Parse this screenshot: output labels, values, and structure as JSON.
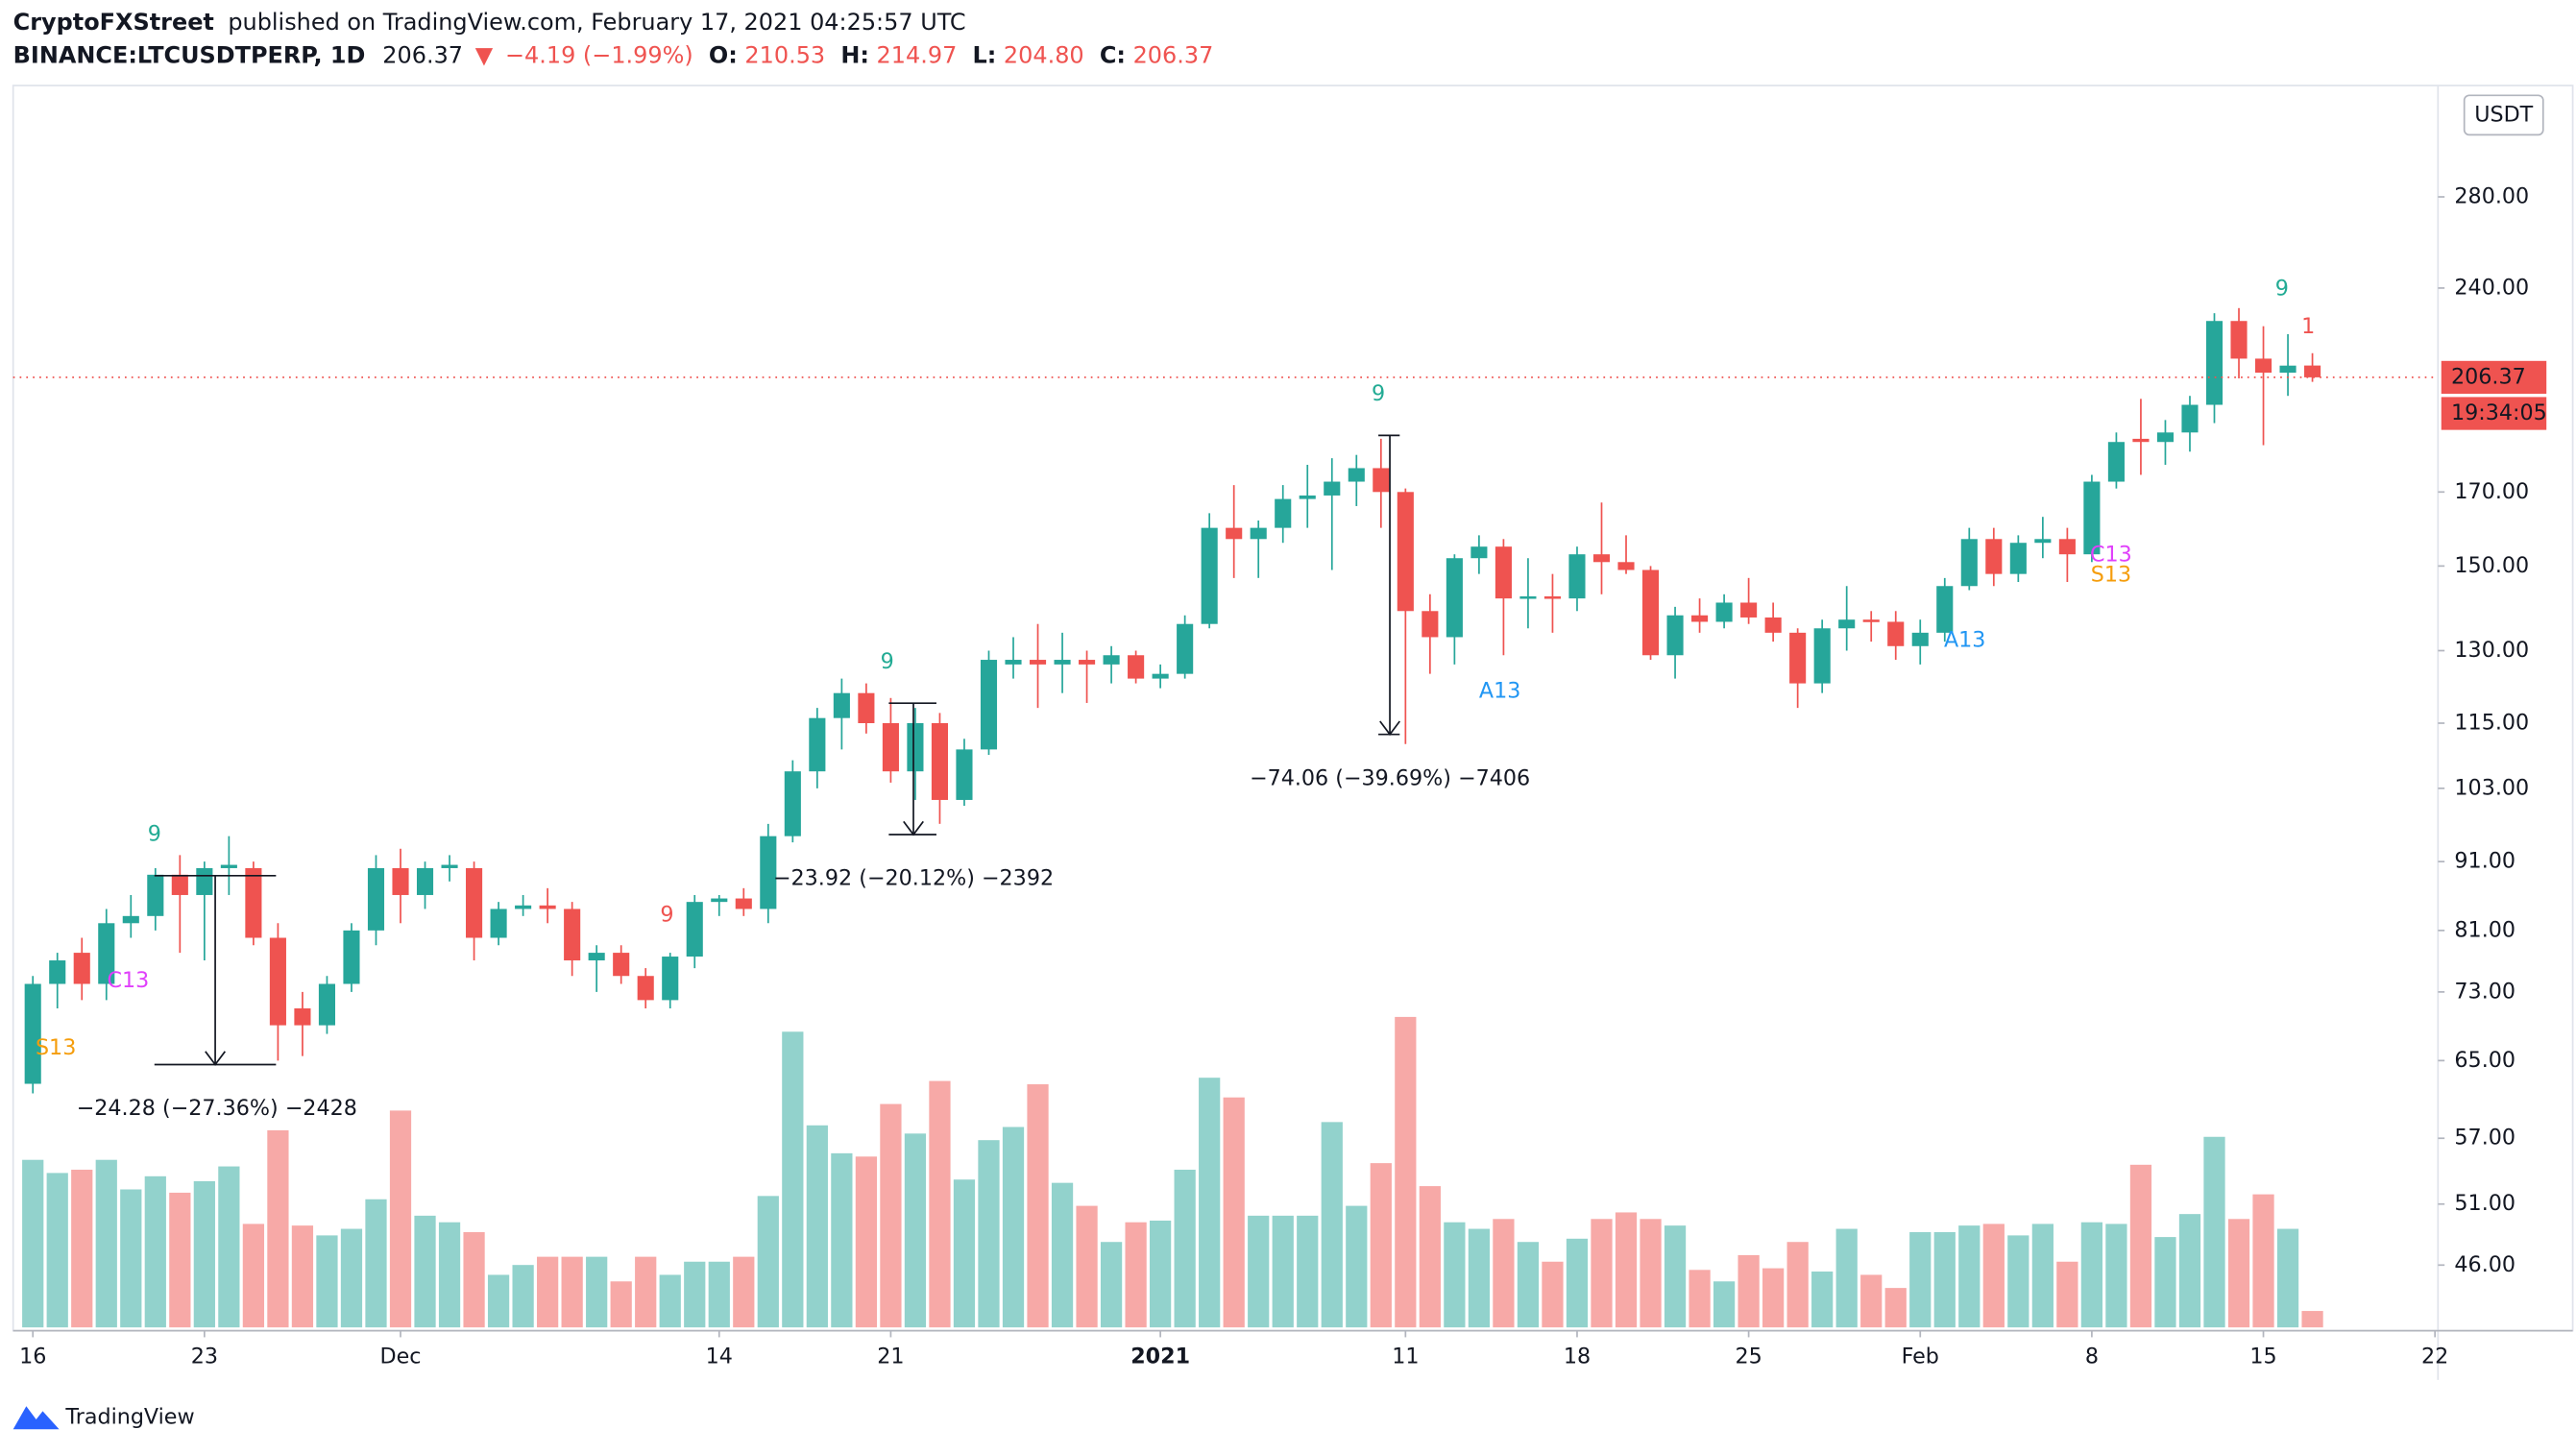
{
  "header": {
    "author": "CryptoFXStreet",
    "published": "published on TradingView.com, February 17, 2021 04:25:57 UTC",
    "symbol": "BINANCE:LTCUSDTPERP, 1D",
    "last": "206.37",
    "arrow": "▼",
    "change": "−4.19 (−1.99%)",
    "o_label": "O:",
    "o": "210.53",
    "h_label": "H:",
    "h": "214.97",
    "l_label": "L:",
    "l": "204.80",
    "c_label": "C:",
    "c": "206.37"
  },
  "footer": {
    "brand": "TradingView"
  },
  "chart_data": {
    "type": "candlestick",
    "currency": "USDT",
    "log_scale": true,
    "up_color": "#26a69a",
    "down_color": "#ef5350",
    "price_tag": "206.37",
    "price_line": 206.37,
    "countdown": "19:34:05",
    "ylim": [
      41.4,
      338
    ],
    "yticks": [
      {
        "value": 280,
        "label": "280.00"
      },
      {
        "value": 240,
        "label": "240.00"
      },
      {
        "value": 170,
        "label": "170.00"
      },
      {
        "value": 150,
        "label": "150.00"
      },
      {
        "value": 130,
        "label": "130.00"
      },
      {
        "value": 115,
        "label": "115.00"
      },
      {
        "value": 103,
        "label": "103.00"
      },
      {
        "value": 91,
        "label": "91.00"
      },
      {
        "value": 81,
        "label": "81.00"
      },
      {
        "value": 73,
        "label": "73.00"
      },
      {
        "value": 65,
        "label": "65.00"
      },
      {
        "value": 57,
        "label": "57.00"
      },
      {
        "value": 51,
        "label": "51.00"
      },
      {
        "value": 46,
        "label": "46.00"
      }
    ],
    "xticks": [
      {
        "value": "2020-11-16",
        "label": "16"
      },
      {
        "value": "2020-11-23",
        "label": "23"
      },
      {
        "value": "2020-12-01",
        "label": "Dec"
      },
      {
        "value": "2020-12-14",
        "label": "14"
      },
      {
        "value": "2020-12-21",
        "label": "21"
      },
      {
        "value": "2021-01-01",
        "label": "2021"
      },
      {
        "value": "2021-01-11",
        "label": "11"
      },
      {
        "value": "2021-01-18",
        "label": "18"
      },
      {
        "value": "2021-01-25",
        "label": "25"
      },
      {
        "value": "2021-02-01",
        "label": "Feb"
      },
      {
        "value": "2021-02-08",
        "label": "8"
      },
      {
        "value": "2021-02-15",
        "label": "15"
      },
      {
        "value": "2021-02-22",
        "label": "22"
      }
    ],
    "x": [
      "2020-11-16",
      "2020-11-17",
      "2020-11-18",
      "2020-11-19",
      "2020-11-20",
      "2020-11-21",
      "2020-11-22",
      "2020-11-23",
      "2020-11-24",
      "2020-11-25",
      "2020-11-26",
      "2020-11-27",
      "2020-11-28",
      "2020-11-29",
      "2020-11-30",
      "2020-12-01",
      "2020-12-02",
      "2020-12-03",
      "2020-12-04",
      "2020-12-05",
      "2020-12-06",
      "2020-12-07",
      "2020-12-08",
      "2020-12-09",
      "2020-12-10",
      "2020-12-11",
      "2020-12-12",
      "2020-12-13",
      "2020-12-14",
      "2020-12-15",
      "2020-12-16",
      "2020-12-17",
      "2020-12-18",
      "2020-12-19",
      "2020-12-20",
      "2020-12-21",
      "2020-12-22",
      "2020-12-23",
      "2020-12-24",
      "2020-12-25",
      "2020-12-26",
      "2020-12-27",
      "2020-12-28",
      "2020-12-29",
      "2020-12-30",
      "2020-12-31",
      "2021-01-01",
      "2021-01-02",
      "2021-01-03",
      "2021-01-04",
      "2021-01-05",
      "2021-01-06",
      "2021-01-07",
      "2021-01-08",
      "2021-01-09",
      "2021-01-10",
      "2021-01-11",
      "2021-01-12",
      "2021-01-13",
      "2021-01-14",
      "2021-01-15",
      "2021-01-16",
      "2021-01-17",
      "2021-01-18",
      "2021-01-19",
      "2021-01-20",
      "2021-01-21",
      "2021-01-22",
      "2021-01-23",
      "2021-01-24",
      "2021-01-25",
      "2021-01-26",
      "2021-01-27",
      "2021-01-28",
      "2021-01-29",
      "2021-01-30",
      "2021-01-31",
      "2021-02-01",
      "2021-02-02",
      "2021-02-03",
      "2021-02-04",
      "2021-02-05",
      "2021-02-06",
      "2021-02-07",
      "2021-02-08",
      "2021-02-09",
      "2021-02-10",
      "2021-02-11",
      "2021-02-12",
      "2021-02-13",
      "2021-02-14",
      "2021-02-15",
      "2021-02-16",
      "2021-02-17"
    ],
    "open": [
      62.5,
      74,
      78,
      74,
      82,
      83,
      89,
      86,
      90,
      90,
      80,
      71,
      69,
      74,
      81,
      90,
      86,
      90,
      90,
      80,
      84,
      84.5,
      84,
      77,
      78,
      75,
      72,
      77.5,
      85,
      85.5,
      84,
      95,
      106,
      116,
      121,
      115,
      106,
      115,
      101,
      110,
      127,
      128,
      127,
      128,
      127,
      129,
      124,
      125,
      136,
      160,
      157,
      160,
      168,
      169,
      173,
      177,
      170,
      139,
      133,
      152,
      155,
      142,
      142.5,
      142,
      153,
      151,
      149,
      129,
      138,
      136.5,
      141,
      137.5,
      134,
      123,
      135,
      137,
      136.5,
      131,
      134,
      145,
      157,
      148,
      156,
      157,
      153,
      173,
      186,
      185,
      188,
      197,
      227,
      213,
      208,
      210.53
    ],
    "high": [
      75,
      78,
      80,
      84,
      86,
      90,
      92,
      91,
      95,
      91,
      82,
      73,
      75,
      82,
      92,
      93,
      91,
      92,
      91,
      85,
      86,
      87,
      85,
      79,
      79,
      76,
      78,
      86,
      86,
      87,
      97,
      108,
      118,
      124,
      123,
      120,
      118,
      117,
      112,
      130,
      133,
      136,
      134,
      130,
      131,
      130,
      127,
      138,
      164,
      172,
      162,
      172,
      178,
      180,
      181,
      186,
      171,
      143,
      153,
      158,
      157,
      152,
      148,
      155,
      167,
      158,
      150,
      140,
      142,
      143,
      147,
      141,
      135,
      137,
      145,
      139,
      139,
      137,
      147,
      160,
      160,
      158,
      163,
      160,
      175,
      188,
      199,
      192,
      200,
      230,
      232,
      225,
      222,
      214.97
    ],
    "low": [
      61.5,
      71,
      72,
      72,
      80,
      81,
      78,
      77,
      86,
      79,
      65,
      65.5,
      68,
      73,
      79,
      82,
      84,
      88,
      77,
      79,
      83,
      82,
      75,
      73,
      74,
      71,
      71,
      76,
      83,
      83,
      82,
      94,
      103,
      110,
      113,
      104,
      101,
      97,
      100,
      109,
      124,
      118,
      121,
      119,
      123,
      123,
      122,
      124,
      135,
      147,
      147,
      156,
      160,
      149,
      166,
      160,
      111,
      125,
      127,
      148,
      129,
      135,
      134,
      139,
      143,
      148,
      128,
      124,
      134,
      135,
      136,
      132,
      118,
      121,
      130,
      132,
      128,
      127,
      132,
      144,
      145,
      146,
      152,
      146,
      151,
      171,
      175,
      178,
      182,
      191,
      206,
      184,
      200,
      204.8
    ],
    "close": [
      74,
      77,
      74,
      82,
      83,
      89,
      86,
      90,
      90.5,
      80,
      69,
      69,
      74,
      81,
      90,
      86,
      90,
      90.5,
      80,
      84,
      84.5,
      84,
      77,
      78,
      75,
      72,
      77.5,
      85,
      85.5,
      84,
      95,
      106,
      116,
      121,
      115,
      106,
      115,
      101,
      110,
      128,
      128,
      127,
      128,
      127,
      129,
      124,
      125,
      136,
      160,
      157,
      160,
      168,
      169,
      173,
      177,
      170,
      139,
      133,
      152,
      155,
      142,
      142.5,
      142,
      153,
      151,
      149,
      129,
      138,
      136.5,
      141,
      137.5,
      134,
      123,
      135,
      137,
      136.5,
      131,
      134,
      145,
      157,
      148,
      156,
      157,
      153,
      173,
      185,
      185,
      188,
      197,
      227,
      213,
      208,
      210.5,
      206.37
    ],
    "volume": [
      102,
      94,
      96,
      102,
      84,
      92,
      82,
      89,
      98,
      63,
      120,
      62,
      56,
      60,
      78,
      132,
      68,
      64,
      58,
      32,
      38,
      43,
      43,
      43,
      28,
      43,
      32,
      40,
      40,
      43,
      80,
      180,
      123,
      106,
      104,
      136,
      118,
      150,
      90,
      114,
      122,
      148,
      88,
      74,
      52,
      64,
      65,
      96,
      152,
      140,
      68,
      68,
      68,
      125,
      74,
      100,
      189,
      86,
      64,
      60,
      66,
      52,
      40,
      54,
      66,
      70,
      66,
      62,
      35,
      28,
      44,
      36,
      52,
      34,
      60,
      32,
      24,
      58,
      58,
      62,
      63,
      56,
      63,
      40,
      64,
      63,
      99,
      55,
      69,
      116,
      66,
      81,
      60,
      10
    ],
    "annotations": [
      {
        "text": "9",
        "color": "#22ab94"
      },
      {
        "text": "C13",
        "color": "#e040fb"
      },
      {
        "text": "S13",
        "color": "#f59d0c"
      },
      {
        "text": "9",
        "color": "#ef5350"
      },
      {
        "text": "9",
        "color": "#22ab94"
      },
      {
        "text": "9",
        "color": "#22ab94"
      },
      {
        "text": "A13",
        "color": "#2196f3"
      },
      {
        "text": "A13",
        "color": "#2196f3"
      },
      {
        "text": "C13",
        "color": "#e040fb"
      },
      {
        "text": "S13",
        "color": "#f59d0c"
      },
      {
        "text": "9",
        "color": "#22ab94"
      },
      {
        "text": "1",
        "color": "#ef5350"
      }
    ],
    "measurements": [
      "−24.28 (−27.36%) −2428",
      "−23.92 (−20.12%) −2392",
      "−74.06 (−39.69%) −7406"
    ]
  }
}
